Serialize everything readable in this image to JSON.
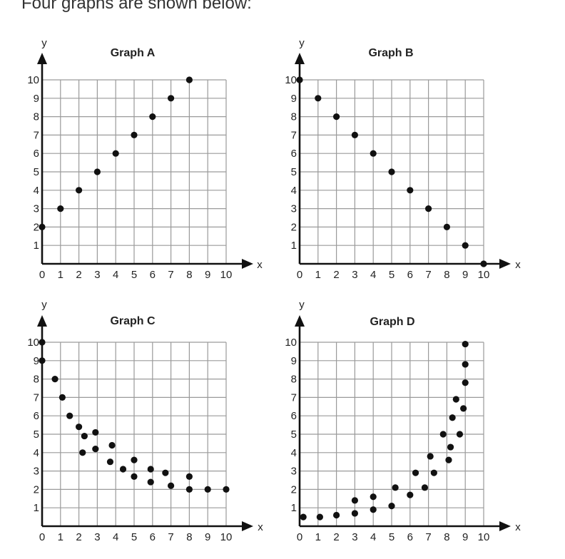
{
  "intro_text": "Four graphs are shown below:",
  "colors": {
    "grid": "#9a9a9a",
    "axis": "#111111",
    "point": "#111111",
    "text": "#222222"
  },
  "chart_data": [
    {
      "type": "scatter",
      "title": "Graph A",
      "xlabel": "x",
      "ylabel": "y",
      "xlim": [
        0,
        10
      ],
      "ylim": [
        0,
        10
      ],
      "grid": true,
      "x_ticks": [
        "0",
        "1",
        "2",
        "3",
        "4",
        "5",
        "6",
        "7",
        "8",
        "9",
        "10"
      ],
      "y_ticks": [
        "1",
        "2",
        "3",
        "4",
        "5",
        "6",
        "7",
        "8",
        "9",
        "10"
      ],
      "points": [
        [
          0,
          2
        ],
        [
          1,
          3
        ],
        [
          2,
          4
        ],
        [
          3,
          5
        ],
        [
          4,
          6
        ],
        [
          5,
          7
        ],
        [
          6,
          8
        ],
        [
          7,
          9
        ],
        [
          8,
          10
        ]
      ]
    },
    {
      "type": "scatter",
      "title": "Graph B",
      "xlabel": "x",
      "ylabel": "y",
      "xlim": [
        0,
        10
      ],
      "ylim": [
        0,
        10
      ],
      "grid": true,
      "x_ticks": [
        "0",
        "1",
        "2",
        "3",
        "4",
        "5",
        "6",
        "7",
        "8",
        "9",
        "10"
      ],
      "y_ticks": [
        "1",
        "2",
        "3",
        "4",
        "5",
        "6",
        "7",
        "8",
        "9",
        "10"
      ],
      "points": [
        [
          0,
          10
        ],
        [
          1,
          9
        ],
        [
          2,
          8
        ],
        [
          3,
          7
        ],
        [
          4,
          6
        ],
        [
          5,
          5
        ],
        [
          6,
          4
        ],
        [
          7,
          3
        ],
        [
          8,
          2
        ],
        [
          9,
          1
        ],
        [
          10,
          0
        ]
      ]
    },
    {
      "type": "scatter",
      "title": "Graph C",
      "xlabel": "x",
      "ylabel": "y",
      "xlim": [
        0,
        10
      ],
      "ylim": [
        0,
        10
      ],
      "grid": true,
      "x_ticks": [
        "0",
        "1",
        "2",
        "3",
        "4",
        "5",
        "6",
        "7",
        "8",
        "9",
        "10"
      ],
      "y_ticks": [
        "1",
        "2",
        "3",
        "4",
        "5",
        "6",
        "7",
        "8",
        "9",
        "10"
      ],
      "points": [
        [
          0,
          10
        ],
        [
          0,
          9
        ],
        [
          0.7,
          8
        ],
        [
          1.1,
          7
        ],
        [
          1.5,
          6
        ],
        [
          2,
          5.4
        ],
        [
          2.3,
          4.9
        ],
        [
          2.2,
          4
        ],
        [
          2.9,
          5.1
        ],
        [
          2.9,
          4.2
        ],
        [
          3.8,
          4.4
        ],
        [
          3.7,
          3.5
        ],
        [
          4.4,
          3.1
        ],
        [
          5,
          3.6
        ],
        [
          5,
          2.7
        ],
        [
          5.9,
          3.1
        ],
        [
          5.9,
          2.4
        ],
        [
          6.7,
          2.9
        ],
        [
          7,
          2.2
        ],
        [
          8,
          2.7
        ],
        [
          8,
          2
        ],
        [
          9,
          2
        ],
        [
          10,
          2
        ]
      ]
    },
    {
      "type": "scatter",
      "title": "Graph D",
      "xlabel": "x",
      "ylabel": "y",
      "xlim": [
        0,
        10
      ],
      "ylim": [
        0,
        10
      ],
      "grid": true,
      "x_ticks": [
        "0",
        "1",
        "2",
        "3",
        "4",
        "5",
        "6",
        "7",
        "8",
        "9",
        "10"
      ],
      "y_ticks": [
        "1",
        "2",
        "3",
        "4",
        "5",
        "6",
        "7",
        "8",
        "9",
        "10"
      ],
      "points": [
        [
          0.2,
          0.5
        ],
        [
          1.1,
          0.5
        ],
        [
          2,
          0.6
        ],
        [
          3,
          0.7
        ],
        [
          3,
          1.4
        ],
        [
          4,
          0.9
        ],
        [
          4,
          1.6
        ],
        [
          5,
          1.1
        ],
        [
          5.2,
          2.1
        ],
        [
          6,
          1.7
        ],
        [
          6.3,
          2.9
        ],
        [
          6.8,
          2.1
        ],
        [
          7.1,
          3.8
        ],
        [
          7.3,
          2.9
        ],
        [
          7.8,
          5
        ],
        [
          8.1,
          3.6
        ],
        [
          8.2,
          4.3
        ],
        [
          8.3,
          5.9
        ],
        [
          8.5,
          6.9
        ],
        [
          8.7,
          5
        ],
        [
          8.9,
          6.4
        ],
        [
          9,
          7.8
        ],
        [
          9,
          8.8
        ],
        [
          9,
          9.9
        ]
      ]
    }
  ]
}
